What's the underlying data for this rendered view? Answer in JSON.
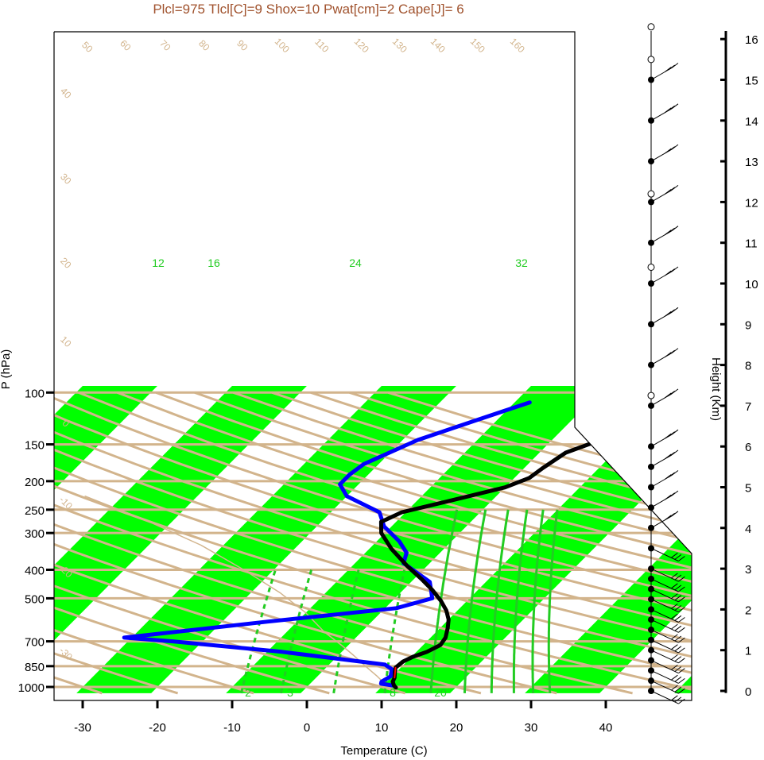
{
  "chart_data": {
    "type": "line",
    "title": "Plcl=975 Tlcl[C]=9 Shox=10 Pwat[cm]=2 Cape[J]= 6",
    "xlabel": "Temperature (C)",
    "ylabel": "P (hPa)",
    "height_axis_label": "Height (Km)",
    "x_ticks": [
      "-30",
      "-20",
      "-10",
      "0",
      "10",
      "20",
      "30",
      "40"
    ],
    "x_tick_values": [
      -30,
      -20,
      -10,
      0,
      10,
      20,
      30,
      40
    ],
    "y_ticks": [
      "100",
      "150",
      "200",
      "250",
      "300",
      "400",
      "500",
      "700",
      "850",
      "1000"
    ],
    "y_tick_values": [
      100,
      150,
      200,
      250,
      300,
      400,
      500,
      700,
      850,
      1000
    ],
    "height_ticks": [
      "0",
      "1",
      "2",
      "3",
      "4",
      "5",
      "6",
      "7",
      "8",
      "9",
      "10",
      "11",
      "12",
      "13",
      "14",
      "15",
      "16"
    ],
    "theta_labels": [
      "50",
      "60",
      "70",
      "80",
      "90",
      "100",
      "110",
      "120",
      "130",
      "140",
      "150",
      "160"
    ],
    "temp_line_labels_left": [
      "40",
      "30",
      "20",
      "10",
      "0",
      "-10",
      "-20",
      "-30"
    ],
    "temp_line_labels_right": [
      "30",
      "20",
      "10",
      "0",
      "10",
      "20",
      "30"
    ],
    "mixing_ratio_labels": [
      "12",
      "16",
      "24",
      "32"
    ],
    "mixing_ratio_low_labels": [
      "2",
      "3",
      "8",
      "20"
    ],
    "colors": {
      "isotherm_band": "#00ff00",
      "grid_tan": "#d2b48c",
      "temperature": "#000000",
      "dewpoint": "#0000ff",
      "parcel": "#d2b48c",
      "mixing": "#22cc22",
      "title": "#a0522d",
      "lcl_segment": "#ff0000"
    },
    "series": [
      {
        "name": "Temperature",
        "points": [
          [
            12,
            1005
          ],
          [
            11.5,
            990
          ],
          [
            10.8,
            960
          ],
          [
            10.5,
            930
          ],
          [
            9.8,
            890
          ],
          [
            9.3,
            860
          ],
          [
            9.5,
            820
          ],
          [
            10.2,
            790
          ],
          [
            11.4,
            760
          ],
          [
            12.3,
            720
          ],
          [
            12.0,
            680
          ],
          [
            11.0,
            630
          ],
          [
            10.0,
            590
          ],
          [
            8.5,
            550
          ],
          [
            6.5,
            510
          ],
          [
            4.0,
            470
          ],
          [
            1.0,
            430
          ],
          [
            -2.5,
            390
          ],
          [
            -7.0,
            340
          ],
          [
            -10.5,
            300
          ],
          [
            -12.0,
            275
          ],
          [
            -10.5,
            255
          ],
          [
            -6.0,
            235
          ],
          [
            0.0,
            210
          ],
          [
            2.0,
            195
          ],
          [
            2.5,
            180
          ],
          [
            3.5,
            160
          ],
          [
            7.5,
            140
          ],
          [
            12.0,
            125
          ],
          [
            15.5,
            113
          ],
          [
            16.5,
            107
          ]
        ]
      },
      {
        "name": "Dewpoint",
        "points": [
          [
            11.5,
            990
          ],
          [
            9.5,
            975
          ],
          [
            9.3,
            960
          ],
          [
            9.8,
            920
          ],
          [
            9.0,
            870
          ],
          [
            7.5,
            840
          ],
          [
            -8.0,
            760
          ],
          [
            -24.0,
            700
          ],
          [
            -31.0,
            680
          ],
          [
            -14.0,
            600
          ],
          [
            1.5,
            540
          ],
          [
            5.0,
            500
          ],
          [
            4.0,
            475
          ],
          [
            2.5,
            440
          ],
          [
            -3.5,
            380
          ],
          [
            -4.5,
            350
          ],
          [
            -7.0,
            320
          ],
          [
            -11.0,
            285
          ],
          [
            -13.5,
            255
          ],
          [
            -20.0,
            225
          ],
          [
            -22.5,
            205
          ],
          [
            -22.5,
            190
          ],
          [
            -22.0,
            175
          ],
          [
            -18.0,
            145
          ],
          [
            -13.0,
            125
          ],
          [
            -8.0,
            108
          ]
        ]
      },
      {
        "name": "Parcel",
        "points": [
          [
            12.5,
            1000
          ],
          [
            10.0,
            975
          ],
          [
            8.0,
            920
          ],
          [
            5.5,
            860
          ],
          [
            2.0,
            780
          ],
          [
            -1.0,
            720
          ],
          [
            -5.0,
            650
          ],
          [
            -10.0,
            560
          ],
          [
            -16.0,
            480
          ],
          [
            -24.0,
            400
          ],
          [
            -33.0,
            330
          ],
          [
            -44.0,
            270
          ],
          [
            -55.0,
            225
          ]
        ]
      }
    ],
    "wind_barbs_height_km": [
      0.0,
      0.25,
      0.5,
      0.75,
      1.0,
      1.25,
      1.5,
      1.75,
      2.0,
      2.25,
      2.5,
      2.75,
      3.0,
      3.5,
      4.0,
      4.5,
      5.0,
      5.5,
      6.0,
      7.0,
      8.0,
      9.0,
      10.0,
      11.0,
      12.0,
      13.0,
      14.0,
      15.0
    ]
  }
}
